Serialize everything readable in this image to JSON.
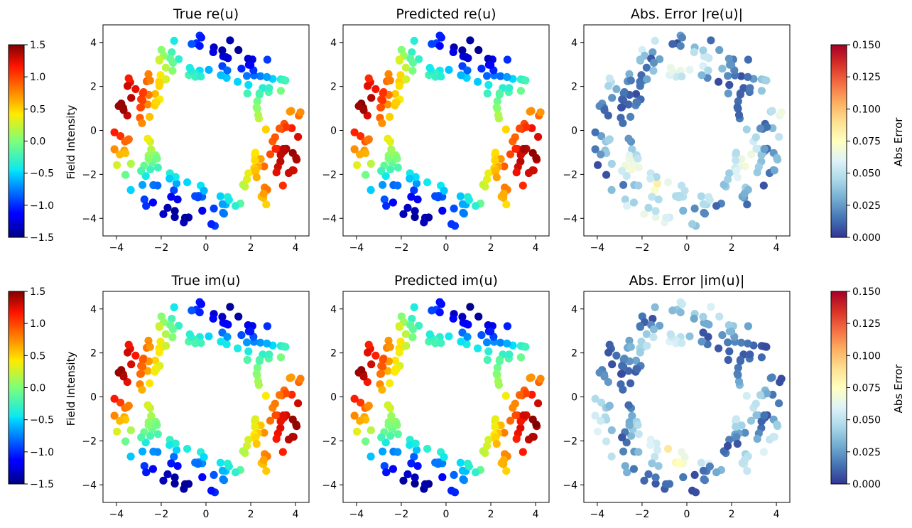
{
  "figure": {
    "colorbar_left": {
      "label": "Field Intensity",
      "colormap": "jet",
      "range": [
        -1.5,
        1.5
      ],
      "ticks": [
        "1.5",
        "1.0",
        "0.5",
        "0.0",
        "−0.5",
        "−1.0",
        "−1.5"
      ]
    },
    "colorbar_right": {
      "label": "Abs Error",
      "colormap": "RdYlBu_r",
      "range": [
        0,
        0.15
      ],
      "ticks": [
        "0.150",
        "0.125",
        "0.100",
        "0.075",
        "0.050",
        "0.025",
        "0.000"
      ]
    }
  },
  "chart_data": [
    {
      "type": "scatter",
      "title": "True re(u)",
      "xlim": [
        -4.6,
        4.6
      ],
      "ylim": [
        -4.8,
        4.8
      ],
      "xticks": [
        -4,
        -2,
        0,
        2,
        4
      ],
      "yticks": [
        -4,
        -2,
        0,
        2,
        4
      ],
      "colormap": "jet",
      "field": "re",
      "variant": "true"
    },
    {
      "type": "scatter",
      "title": "Predicted re(u)",
      "xlim": [
        -4.6,
        4.6
      ],
      "ylim": [
        -4.8,
        4.8
      ],
      "xticks": [
        -4,
        -2,
        0,
        2,
        4
      ],
      "yticks": [
        -4,
        -2,
        0,
        2,
        4
      ],
      "colormap": "jet",
      "field": "re",
      "variant": "pred"
    },
    {
      "type": "scatter",
      "title": "Abs. Error |re(u)|",
      "xlim": [
        -4.6,
        4.6
      ],
      "ylim": [
        -4.8,
        4.8
      ],
      "xticks": [
        -4,
        -2,
        0,
        2,
        4
      ],
      "yticks": [
        -4,
        -2,
        0,
        2,
        4
      ],
      "colormap": "RdYlBu_r",
      "field": "re",
      "variant": "err"
    },
    {
      "type": "scatter",
      "title": "True im(u)",
      "xlim": [
        -4.6,
        4.6
      ],
      "ylim": [
        -4.8,
        4.8
      ],
      "xticks": [
        -4,
        -2,
        0,
        2,
        4
      ],
      "yticks": [
        -4,
        -2,
        0,
        2,
        4
      ],
      "colormap": "jet",
      "field": "im",
      "variant": "true"
    },
    {
      "type": "scatter",
      "title": "Predicted im(u)",
      "xlim": [
        -4.6,
        4.6
      ],
      "ylim": [
        -4.8,
        4.8
      ],
      "xticks": [
        -4,
        -2,
        0,
        2,
        4
      ],
      "yticks": [
        -4,
        -2,
        0,
        2,
        4
      ],
      "colormap": "jet",
      "field": "im",
      "variant": "pred"
    },
    {
      "type": "scatter",
      "title": "Abs. Error |im(u)|",
      "xlim": [
        -4.6,
        4.6
      ],
      "ylim": [
        -4.8,
        4.8
      ],
      "xticks": [
        -4,
        -2,
        0,
        2,
        4
      ],
      "yticks": [
        -4,
        -2,
        0,
        2,
        4
      ],
      "colormap": "RdYlBu_r",
      "field": "im",
      "variant": "err"
    }
  ]
}
